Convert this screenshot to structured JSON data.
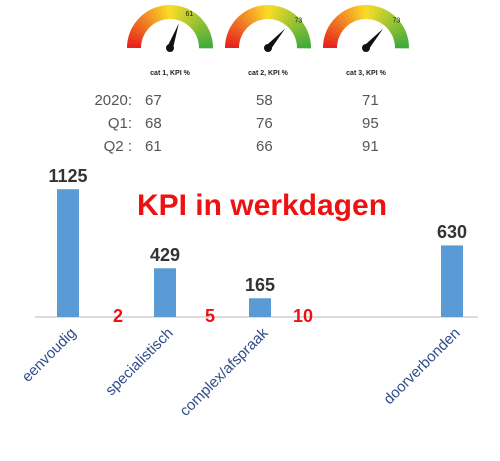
{
  "chart_data": [
    {
      "type": "gauge",
      "label": "cat 1, KPI %",
      "value": 61,
      "ylim": [
        0,
        100
      ]
    },
    {
      "type": "gauge",
      "label": "cat 2, KPI %",
      "value": 73,
      "ylim": [
        0,
        100
      ]
    },
    {
      "type": "gauge",
      "label": "cat 3, KPI %",
      "value": 73,
      "ylim": [
        0,
        100
      ]
    },
    {
      "type": "bar",
      "title": "KPI in werkdagen",
      "categories": [
        "eenvoudig",
        "specialistisch",
        "complex/afspraak",
        "doorverbonden"
      ],
      "values": [
        1125,
        429,
        165,
        630
      ],
      "color": "#5b9bd5",
      "ylim": [
        0,
        1250
      ],
      "annotations": [
        "2",
        "5",
        "10"
      ]
    }
  ],
  "table": {
    "rows": [
      [
        "2020:",
        67,
        58,
        71
      ],
      [
        "Q1:",
        68,
        76,
        95
      ],
      [
        "Q2 :",
        61,
        66,
        91
      ]
    ]
  }
}
